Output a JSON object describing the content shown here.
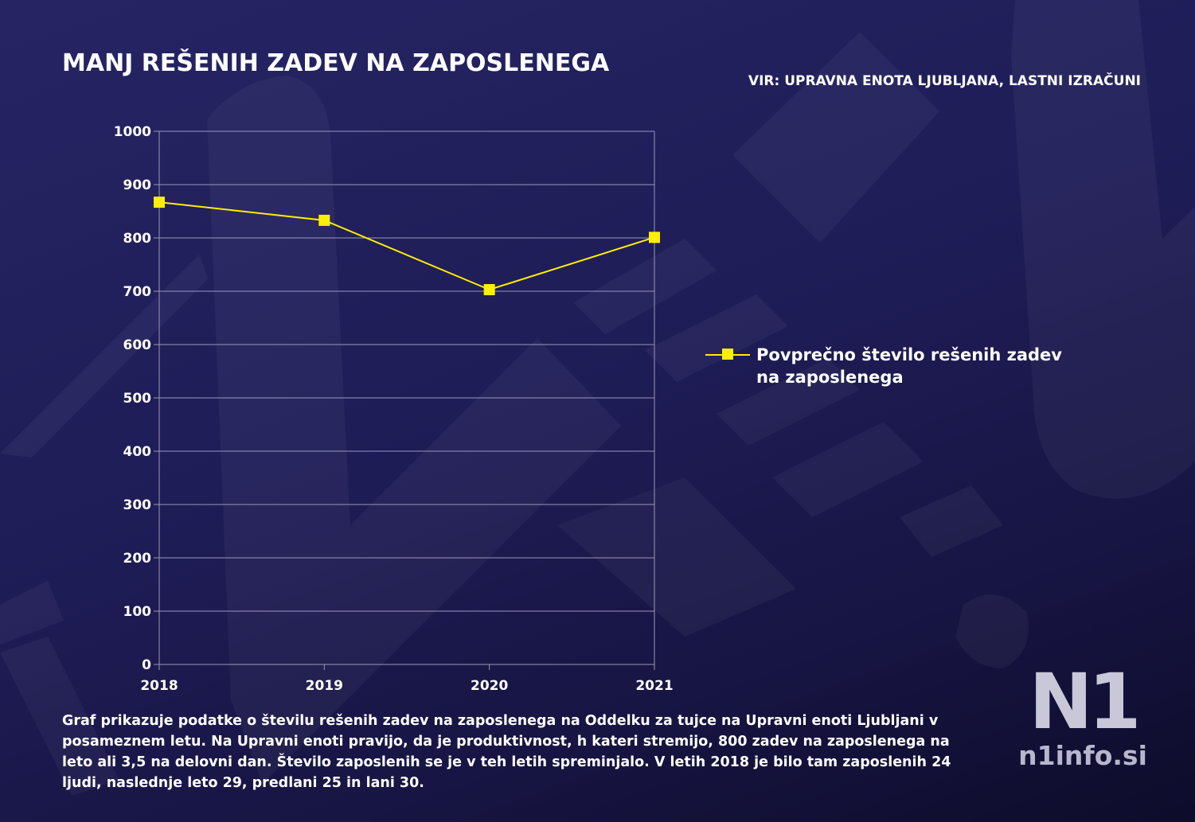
{
  "header": {
    "title": "MANJ REŠENIH ZADEV NA ZAPOSLENEGA",
    "source": "VIR: UPRAVNA ENOTA LJUBLJANA, LASTNI IZRAČUNI"
  },
  "caption": "Graf prikazuje podatke o številu rešenih zadev na zaposlenega na Oddelku za tujce na Upravni enoti Ljubljani v posameznem letu. Na Upravni enoti pravijo, da je produktivnost, h kateri stremijo, 800 zadev na zaposlenega na leto ali 3,5 na delovni dan. Število zaposlenih se je v teh letih spreminjalo. V letih 2018 je bilo tam zaposlenih 24 ljudi, naslednje leto 29, predlani 25 in lani 30.",
  "logo": {
    "mark": "N1",
    "text": "n1info.si"
  },
  "colors": {
    "series": "#ffef00",
    "grid": "#9a98b4",
    "background": "#201e58"
  },
  "chart_data": {
    "type": "line",
    "title": "",
    "xlabel": "",
    "ylabel": "",
    "categories": [
      "2018",
      "2019",
      "2020",
      "2021"
    ],
    "series": [
      {
        "name": "Povprečno število rešenih zadev na zaposlenega",
        "values": [
          867,
          833,
          703,
          801
        ]
      }
    ],
    "ylim": [
      0,
      1000
    ],
    "yticks": [
      0,
      100,
      200,
      300,
      400,
      500,
      600,
      700,
      800,
      900,
      1000
    ],
    "grid": true,
    "legend": "right"
  }
}
